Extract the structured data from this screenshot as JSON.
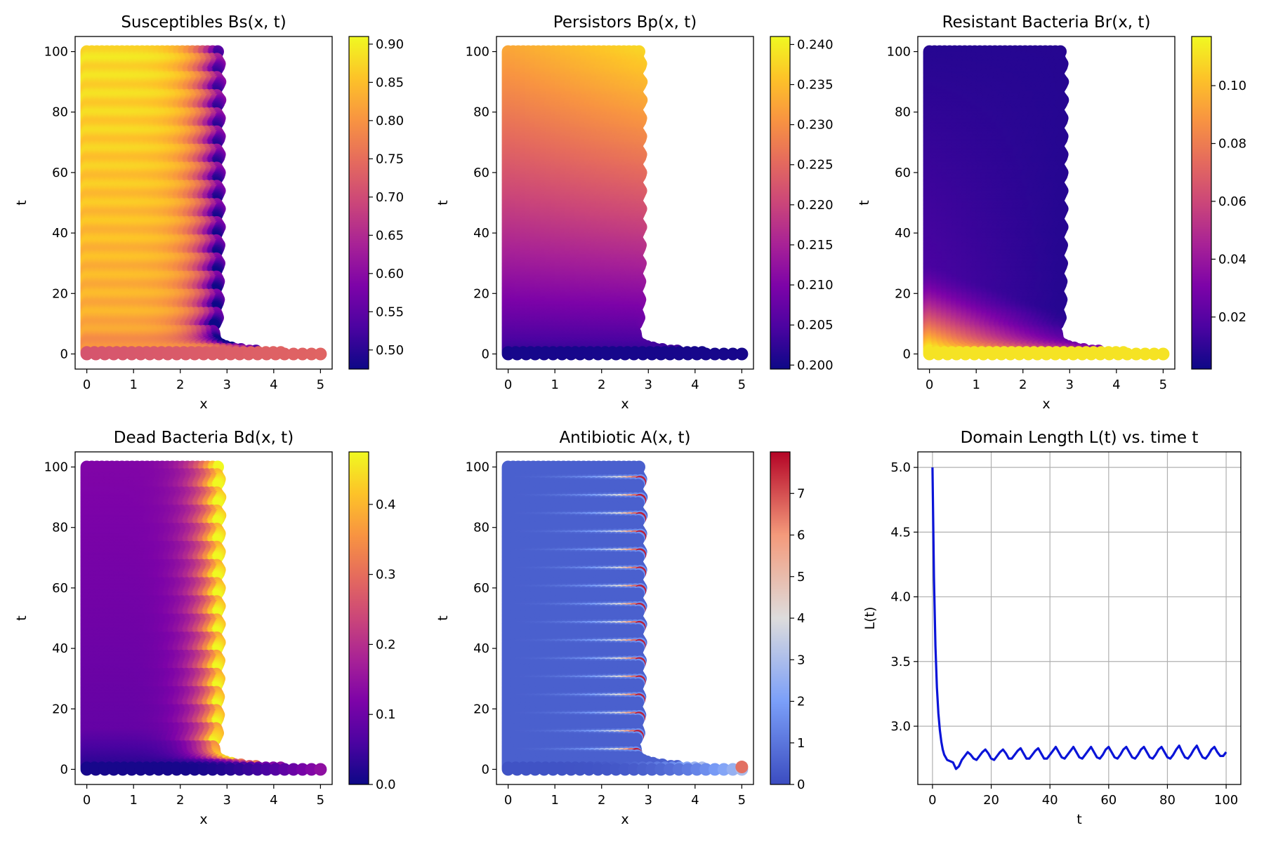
{
  "chart_data": [
    {
      "type": "scatter",
      "title": "Susceptibles Bs(x, t)",
      "xlabel": "x",
      "ylabel": "t",
      "xlim": [
        -0.25,
        5.25
      ],
      "ylim": [
        -5,
        105
      ],
      "xticks": [
        "0",
        "1",
        "2",
        "3",
        "4",
        "5"
      ],
      "yticks": [
        "0",
        "20",
        "40",
        "60",
        "80",
        "100"
      ],
      "colormap": "plasma",
      "colorbar": {
        "range": [
          0.475,
          0.91
        ],
        "ticks": [
          "0.50",
          "0.55",
          "0.60",
          "0.65",
          "0.70",
          "0.75",
          "0.80",
          "0.85",
          "0.90"
        ]
      },
      "field": "susceptible"
    },
    {
      "type": "scatter",
      "title": "Persistors Bp(x, t)",
      "xlabel": "x",
      "ylabel": "t",
      "xlim": [
        -0.25,
        5.25
      ],
      "ylim": [
        -5,
        105
      ],
      "xticks": [
        "0",
        "1",
        "2",
        "3",
        "4",
        "5"
      ],
      "yticks": [
        "0",
        "20",
        "40",
        "60",
        "80",
        "100"
      ],
      "colormap": "plasma",
      "colorbar": {
        "range": [
          0.1995,
          0.241
        ],
        "ticks": [
          "0.200",
          "0.205",
          "0.210",
          "0.215",
          "0.220",
          "0.225",
          "0.230",
          "0.235",
          "0.240"
        ]
      },
      "field": "persistor"
    },
    {
      "type": "scatter",
      "title": "Resistant Bacteria Br(x, t)",
      "xlabel": "x",
      "ylabel": "t",
      "xlim": [
        -0.25,
        5.25
      ],
      "ylim": [
        -5,
        105
      ],
      "xticks": [
        "0",
        "1",
        "2",
        "3",
        "4",
        "5"
      ],
      "yticks": [
        "0",
        "20",
        "40",
        "60",
        "80",
        "100"
      ],
      "colormap": "plasma",
      "colorbar": {
        "range": [
          0.002,
          0.117
        ],
        "ticks": [
          "0.02",
          "0.04",
          "0.06",
          "0.08",
          "0.10"
        ]
      },
      "field": "resistant"
    },
    {
      "type": "scatter",
      "title": "Dead Bacteria Bd(x, t)",
      "xlabel": "x",
      "ylabel": "t",
      "xlim": [
        -0.25,
        5.25
      ],
      "ylim": [
        -5,
        105
      ],
      "xticks": [
        "0",
        "1",
        "2",
        "3",
        "4",
        "5"
      ],
      "yticks": [
        "0",
        "20",
        "40",
        "60",
        "80",
        "100"
      ],
      "colormap": "plasma",
      "colorbar": {
        "range": [
          0.0,
          0.475
        ],
        "ticks": [
          "0.0",
          "0.1",
          "0.2",
          "0.3",
          "0.4"
        ]
      },
      "field": "dead"
    },
    {
      "type": "scatter",
      "title": "Antibiotic A(x, t)",
      "xlabel": "x",
      "ylabel": "t",
      "xlim": [
        -0.25,
        5.25
      ],
      "ylim": [
        -5,
        105
      ],
      "xticks": [
        "0",
        "1",
        "2",
        "3",
        "4",
        "5"
      ],
      "yticks": [
        "0",
        "20",
        "40",
        "60",
        "80",
        "100"
      ],
      "colormap": "coolwarm",
      "colorbar": {
        "range": [
          0,
          8
        ],
        "ticks": [
          "0",
          "1",
          "2",
          "3",
          "4",
          "5",
          "6",
          "7"
        ]
      },
      "field": "antibiotic"
    },
    {
      "type": "line",
      "title": "Domain Length L(t) vs. time t",
      "xlabel": "t",
      "ylabel": "L(t)",
      "xlim": [
        -5,
        105
      ],
      "ylim": [
        2.55,
        5.12
      ],
      "xticks": [
        "0",
        "20",
        "40",
        "60",
        "80",
        "100"
      ],
      "yticks": [
        "3.0",
        "3.5",
        "4.0",
        "4.5",
        "5.0"
      ],
      "grid": true,
      "series": [
        {
          "name": "L(t)",
          "color": "#0a14d8",
          "x": [
            0,
            0.5,
            1,
            1.5,
            2,
            2.5,
            3,
            3.5,
            4,
            4.5,
            5,
            6,
            7,
            8,
            9,
            10,
            11,
            12,
            13,
            14,
            15,
            16,
            17,
            18,
            19,
            20,
            21,
            22,
            23,
            24,
            25,
            26,
            27,
            28,
            29,
            30,
            31,
            32,
            33,
            34,
            35,
            36,
            37,
            38,
            39,
            40,
            41,
            42,
            43,
            44,
            45,
            46,
            47,
            48,
            49,
            50,
            51,
            52,
            53,
            54,
            55,
            56,
            57,
            58,
            59,
            60,
            61,
            62,
            63,
            64,
            65,
            66,
            67,
            68,
            69,
            70,
            71,
            72,
            73,
            74,
            75,
            76,
            77,
            78,
            79,
            80,
            81,
            82,
            83,
            84,
            85,
            86,
            87,
            88,
            89,
            90,
            91,
            92,
            93,
            94,
            95,
            96,
            97,
            98,
            99,
            100
          ],
          "y": [
            5.0,
            4.15,
            3.62,
            3.3,
            3.1,
            2.97,
            2.88,
            2.82,
            2.78,
            2.76,
            2.74,
            2.73,
            2.72,
            2.67,
            2.69,
            2.74,
            2.77,
            2.8,
            2.78,
            2.75,
            2.74,
            2.77,
            2.8,
            2.82,
            2.79,
            2.75,
            2.74,
            2.77,
            2.8,
            2.82,
            2.79,
            2.75,
            2.75,
            2.78,
            2.81,
            2.83,
            2.79,
            2.75,
            2.75,
            2.78,
            2.81,
            2.83,
            2.79,
            2.75,
            2.75,
            2.78,
            2.81,
            2.84,
            2.8,
            2.76,
            2.75,
            2.78,
            2.81,
            2.84,
            2.8,
            2.76,
            2.75,
            2.78,
            2.81,
            2.84,
            2.8,
            2.76,
            2.75,
            2.78,
            2.82,
            2.84,
            2.8,
            2.76,
            2.75,
            2.78,
            2.82,
            2.84,
            2.8,
            2.76,
            2.75,
            2.78,
            2.82,
            2.84,
            2.8,
            2.76,
            2.75,
            2.78,
            2.82,
            2.84,
            2.8,
            2.76,
            2.75,
            2.78,
            2.82,
            2.85,
            2.8,
            2.76,
            2.75,
            2.78,
            2.82,
            2.85,
            2.8,
            2.76,
            2.75,
            2.78,
            2.82,
            2.84,
            2.8,
            2.77,
            2.77,
            2.8
          ]
        }
      ]
    }
  ]
}
